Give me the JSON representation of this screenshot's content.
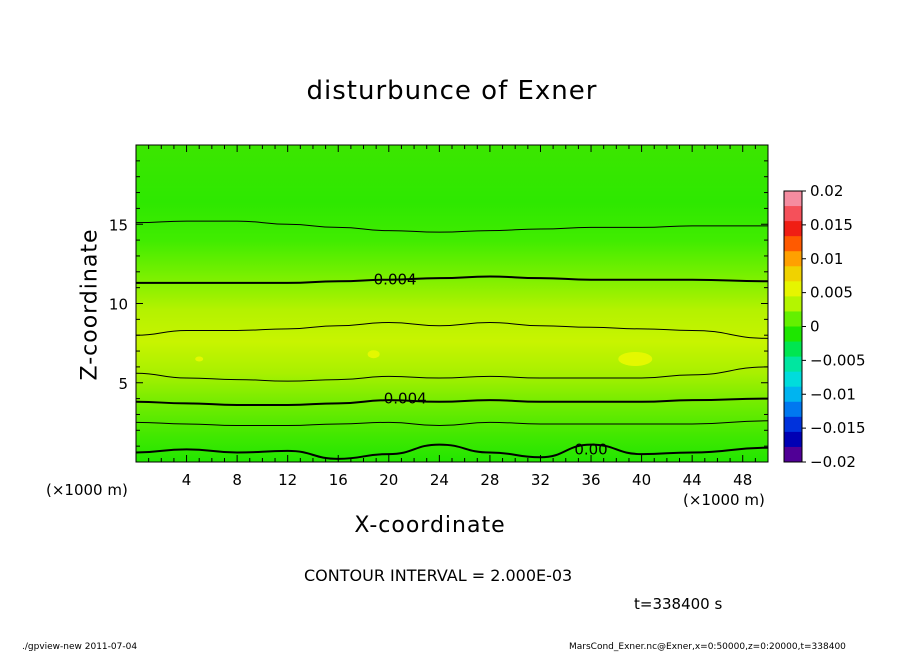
{
  "chart_data": {
    "type": "heatmap",
    "title": "disturbunce of Exner",
    "xlabel": "X-coordinate",
    "ylabel": "Z-coordinate",
    "x_unit": "(×1000 m)",
    "xlim": [
      0,
      50
    ],
    "ylim": [
      0,
      20
    ],
    "x_ticks": [
      4,
      8,
      12,
      16,
      20,
      24,
      28,
      32,
      36,
      40,
      44,
      48
    ],
    "y_ticks": [
      5,
      10,
      15
    ],
    "colorbar": {
      "ticks": [
        "0.02",
        "0.015",
        "0.01",
        "0.005",
        "0",
        "-0.005",
        "-0.01",
        "-0.015",
        "-0.02"
      ],
      "range": [
        -0.02,
        0.02
      ],
      "colors": [
        "#f58ca0",
        "#f5505a",
        "#f01e14",
        "#ff5a00",
        "#ffa000",
        "#f0d200",
        "#e6f500",
        "#b4f500",
        "#64f000",
        "#1ee600",
        "#00e650",
        "#00e6a0",
        "#00dcdc",
        "#00b4f0",
        "#0078f0",
        "#0032dc",
        "#0000b4",
        "#500096"
      ]
    },
    "contour_labels": [
      {
        "text": "0.004",
        "x": 20.5,
        "z": 11.5
      },
      {
        "text": "0.004",
        "x": 21.3,
        "z": 4.0
      },
      {
        "text": "0.00",
        "x": 36.0,
        "z": 0.8
      }
    ],
    "contour_levels": [
      {
        "level": 0.006,
        "z": [
          15.1,
          15.2,
          15.2,
          15.0,
          14.8,
          14.6,
          14.5,
          14.6,
          14.7,
          14.8,
          14.8,
          14.9,
          14.9
        ],
        "bold": false
      },
      {
        "level": 0.004,
        "z": [
          11.3,
          11.3,
          11.3,
          11.3,
          11.4,
          11.5,
          11.6,
          11.7,
          11.6,
          11.5,
          11.5,
          11.5,
          11.4
        ],
        "bold": true
      },
      {
        "level": 0.006,
        "z": [
          8.0,
          8.3,
          8.3,
          8.4,
          8.6,
          8.8,
          8.6,
          8.8,
          8.6,
          8.5,
          8.4,
          8.3,
          7.8
        ],
        "bold": false
      },
      {
        "level": 0.006,
        "z": [
          5.6,
          5.3,
          5.2,
          5.1,
          5.2,
          5.4,
          5.3,
          5.4,
          5.3,
          5.3,
          5.3,
          5.5,
          6.0
        ],
        "bold": false
      },
      {
        "level": 0.004,
        "z": [
          3.8,
          3.7,
          3.6,
          3.6,
          3.7,
          3.9,
          3.8,
          3.9,
          3.8,
          3.8,
          3.8,
          3.9,
          4.0
        ],
        "bold": true
      },
      {
        "level": 0.002,
        "z": [
          2.5,
          2.4,
          2.3,
          2.3,
          2.4,
          2.5,
          2.3,
          2.5,
          2.4,
          2.4,
          2.4,
          2.4,
          2.6
        ],
        "bold": false
      },
      {
        "level": 0.0,
        "z": [
          0.6,
          0.8,
          0.6,
          0.7,
          0.2,
          0.5,
          1.1,
          0.6,
          0.3,
          1.1,
          0.5,
          0.6,
          0.9
        ],
        "bold": true
      }
    ],
    "contour_x": [
      0,
      4,
      8,
      12,
      16,
      20,
      24,
      28,
      32,
      36,
      40,
      44,
      50
    ]
  },
  "contour_interval": "CONTOUR INTERVAL = 2.000E-03",
  "time": "t=338400 s",
  "footer_left": "./gpview-new   2011-07-04",
  "footer_right": "MarsCond_Exner.nc@Exner,x=0:50000,z=0:20000,t=338400"
}
